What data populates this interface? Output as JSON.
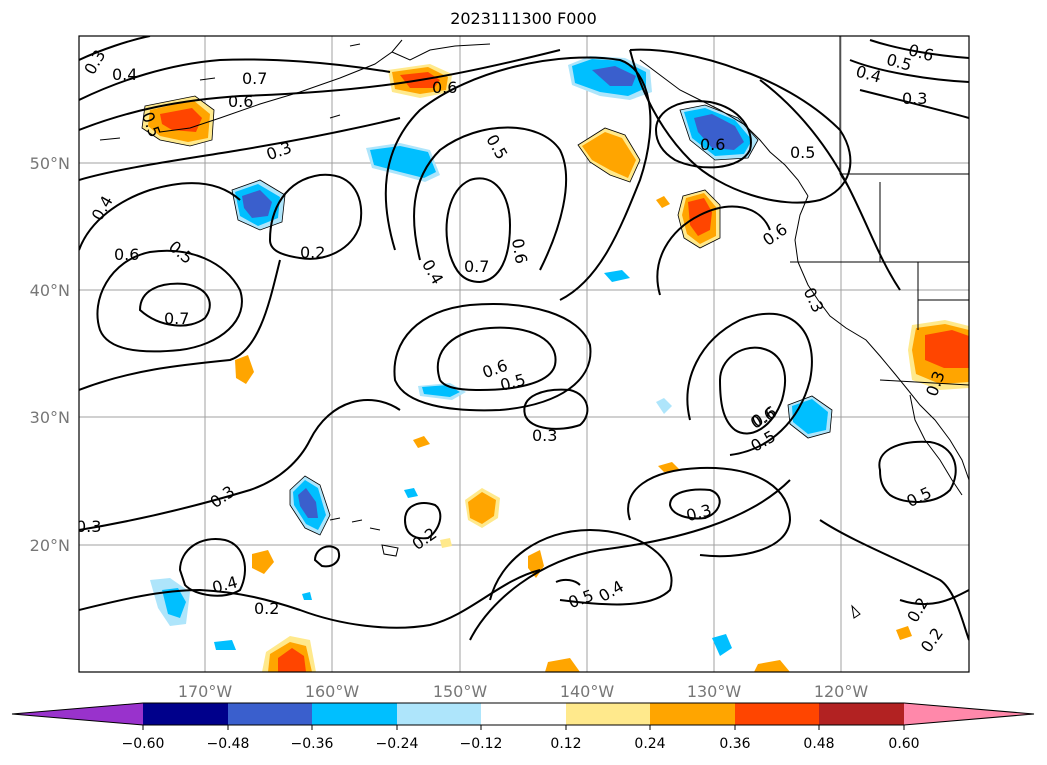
{
  "title": "2023111300 F000",
  "lat_ticks": [
    {
      "label": "50°N",
      "lat": 50
    },
    {
      "label": "40°N",
      "lat": 40
    },
    {
      "label": "30°N",
      "lat": 30
    },
    {
      "label": "20°N",
      "lat": 20
    }
  ],
  "lon_ticks": [
    {
      "label": "170°W",
      "lon": -170
    },
    {
      "label": "160°W",
      "lon": -160
    },
    {
      "label": "150°W",
      "lon": -150
    },
    {
      "label": "140°W",
      "lon": -140
    },
    {
      "label": "130°W",
      "lon": -130
    },
    {
      "label": "120°W",
      "lon": -120
    }
  ],
  "colorbar": {
    "colors": [
      "#9932cc",
      "#00008b",
      "#3a5fcd",
      "#00bfff",
      "#aee5fb",
      "#ffffff",
      "#ffe98c",
      "#ffa500",
      "#ff4500",
      "#b22222",
      "#ff88aa"
    ],
    "labels": [
      "−0.60",
      "−0.48",
      "−0.36",
      "−0.24",
      "−0.12",
      "0.12",
      "0.24",
      "0.36",
      "0.48",
      "0.60"
    ]
  },
  "contour_labels": [
    "0.3",
    "0.4",
    "0.7",
    "0.6",
    "0.5",
    "0.3",
    "0.6",
    "0.6",
    "0.5",
    "0.5",
    "0.6",
    "0.4",
    "0.3",
    "0.6",
    "0.4",
    "0.5",
    "0.2",
    "0.4",
    "0.7",
    "0.6",
    "0.6",
    "0.5",
    "0.7",
    "0.6",
    "0.6",
    "0.5",
    "0.3",
    "0.3",
    "0.3",
    "0.6",
    "0.5",
    "0.3",
    "0.2",
    "0.3",
    "0.5",
    "0.4",
    "0.4",
    "0.2",
    "0.5",
    "0.2",
    "0.2",
    "0.3"
  ]
}
